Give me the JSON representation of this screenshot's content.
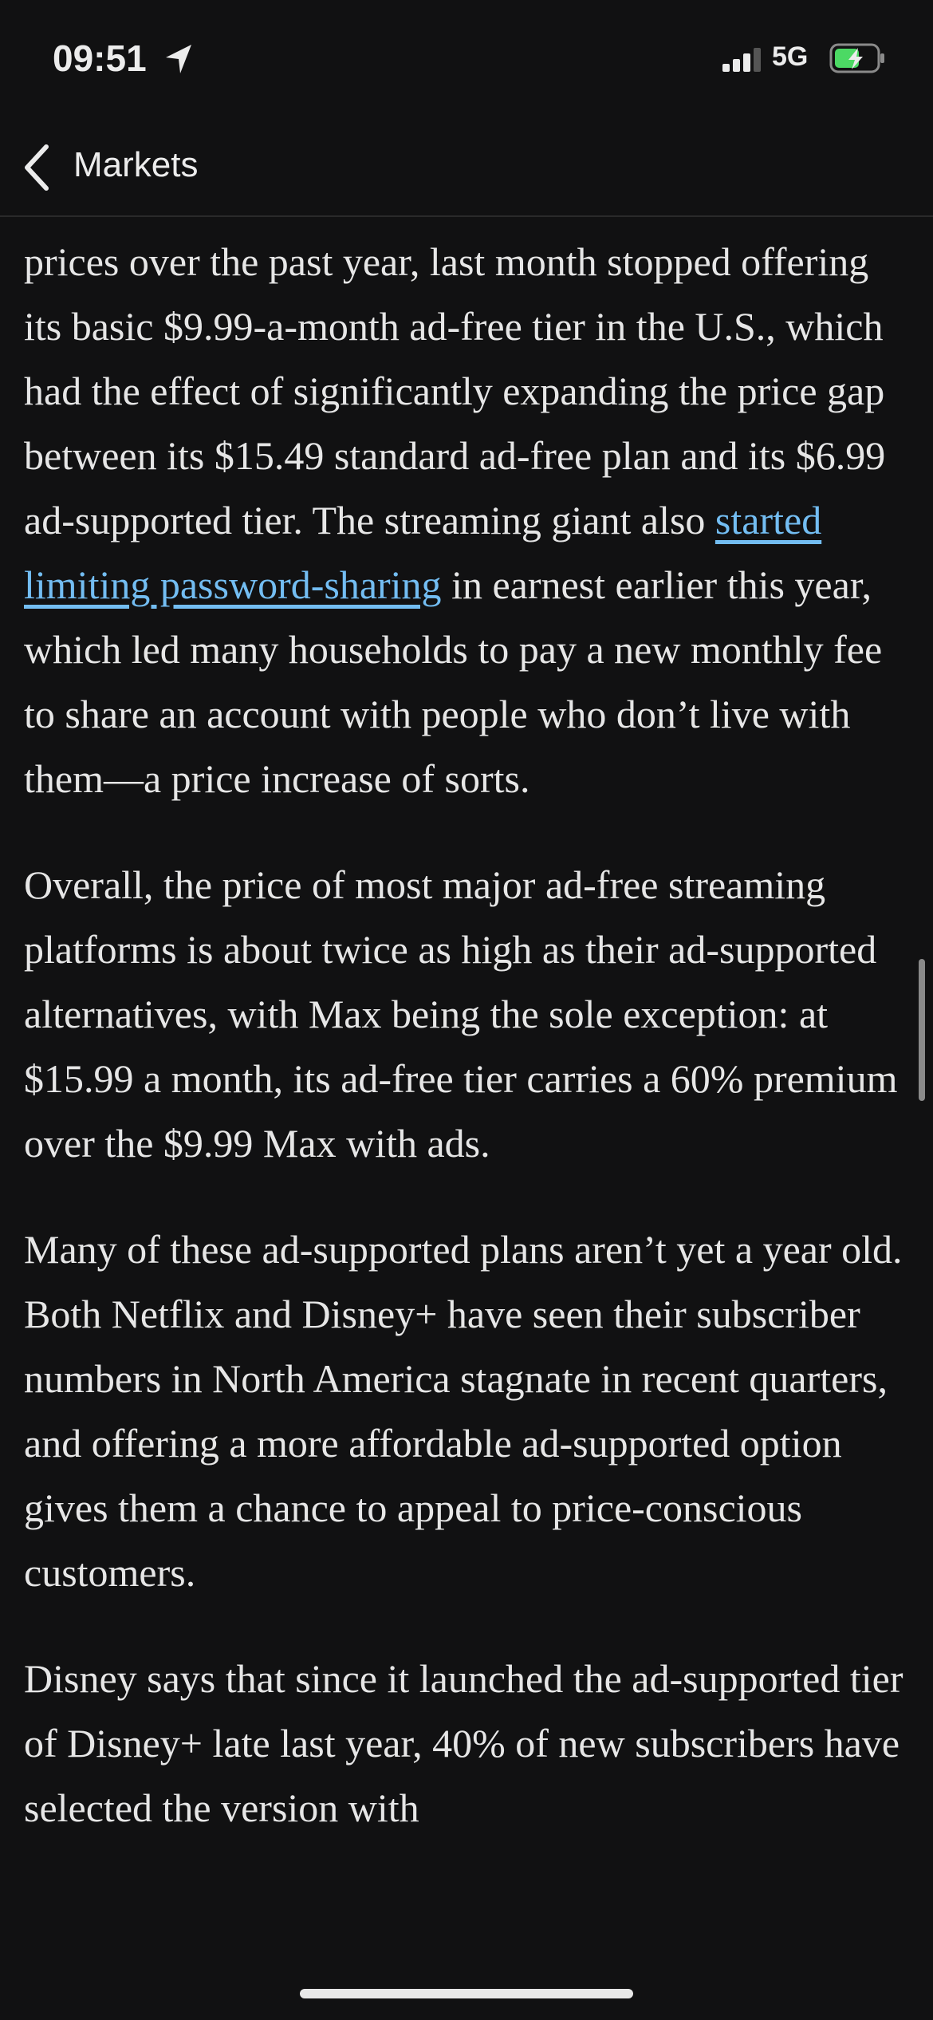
{
  "status_bar": {
    "time": "09:51",
    "network": "5G"
  },
  "nav": {
    "back_label": "Markets"
  },
  "article": {
    "paragraphs": [
      {
        "text": "prices over the past year, last month stopped offering its basic $9.99-a-month ad-free tier in the U.S., which had the effect of significantly expanding the price gap between its $15.49 standard ad-free plan and its $6.99 ad-supported tier. The streaming giant also ",
        "link": "started limiting password-sharing",
        "after": " in earnest earlier this year, which led many households to pay a new monthly fee to share an account with people who don’t live with them—a price increase of sorts."
      },
      {
        "text": "Overall, the price of most major ad-free streaming platforms is about twice as high as their ad-supported alternatives, with Max being the sole exception: at $15.99 a month, its ad-free tier carries a 60% premium over the $9.99 Max with ads."
      },
      {
        "text": "Many of these ad-supported plans aren’t yet a year old. Both Netflix and Disney+ have seen their subscriber numbers in North America stagnate in recent quarters, and offering a more affordable ad-supported option gives them a chance to appeal to price-conscious customers."
      },
      {
        "text": "Disney says that since it launched the ad-supported tier of Disney+ late last year, 40% of new subscribers have selected the version with"
      }
    ]
  }
}
